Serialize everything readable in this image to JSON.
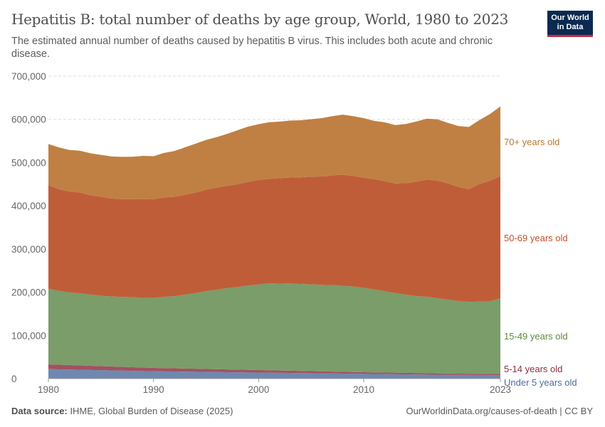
{
  "header": {
    "title": "Hepatitis B: total number of deaths by age group, World, 1980 to 2023",
    "subtitle": "The estimated annual number of deaths caused by hepatitis B virus. This includes both acute and chronic disease.",
    "logo": "Our World in Data"
  },
  "footer": {
    "source_label": "Data source:",
    "source": "IHME, Global Burden of Disease (2025)",
    "credit": "OurWorldinData.org/causes-of-death | CC BY"
  },
  "chart_data": {
    "type": "area",
    "stacked": true,
    "title": "Hepatitis B: total number of deaths by age group, World, 1980 to 2023",
    "ylim": [
      0,
      700000
    ],
    "y_ticks": [
      "0",
      "100,000",
      "200,000",
      "300,000",
      "400,000",
      "500,000",
      "600,000",
      "700,000"
    ],
    "x_ticks": [
      "1980",
      "1990",
      "2000",
      "2010",
      "2023"
    ],
    "grid": "horizontal dashed",
    "legend": "right, inline labels",
    "x": [
      1980,
      1981,
      1982,
      1983,
      1984,
      1985,
      1986,
      1987,
      1988,
      1989,
      1990,
      1991,
      1992,
      1993,
      1994,
      1995,
      1996,
      1997,
      1998,
      1999,
      2000,
      2001,
      2002,
      2003,
      2004,
      2005,
      2006,
      2007,
      2008,
      2009,
      2010,
      2011,
      2012,
      2013,
      2014,
      2015,
      2016,
      2017,
      2018,
      2019,
      2020,
      2021,
      2022,
      2023
    ],
    "series": [
      {
        "name": "Under 5 years old",
        "color": "#6f88b0",
        "label_color": "#4c6a9c",
        "values": [
          22000,
          21500,
          21000,
          20500,
          20000,
          19500,
          19000,
          18500,
          18000,
          17500,
          17000,
          16700,
          16400,
          16100,
          15800,
          15500,
          15200,
          14900,
          14600,
          14300,
          14000,
          13700,
          13400,
          13100,
          12800,
          12500,
          12200,
          11900,
          11600,
          11300,
          11000,
          10700,
          10400,
          10100,
          9800,
          9500,
          9200,
          9000,
          8800,
          8600,
          8400,
          8200,
          8000,
          8000
        ]
      },
      {
        "name": "5-14 years old",
        "color": "#a0525f",
        "label_color": "#8a2f3e",
        "values": [
          11000,
          10600,
          10200,
          9900,
          9600,
          9300,
          9000,
          8700,
          8400,
          8100,
          7800,
          7600,
          7400,
          7200,
          7000,
          6800,
          6600,
          6400,
          6200,
          6000,
          5800,
          5600,
          5400,
          5200,
          5000,
          4800,
          4600,
          4400,
          4200,
          4000,
          3900,
          3800,
          3700,
          3600,
          3500,
          3400,
          3300,
          3200,
          3100,
          3000,
          3000,
          3000,
          3000,
          3000
        ]
      },
      {
        "name": "15-49 years old",
        "color": "#7a9d6a",
        "label_color": "#5a8a3e",
        "values": [
          175000,
          171000,
          168000,
          167000,
          165000,
          163000,
          162000,
          162000,
          162000,
          161000,
          162000,
          165000,
          167000,
          171000,
          175000,
          180000,
          184000,
          188000,
          191000,
          195000,
          198000,
          201000,
          201000,
          202000,
          201000,
          201000,
          200000,
          200000,
          199000,
          198000,
          195000,
          192000,
          188000,
          184000,
          181000,
          178000,
          177000,
          174000,
          171000,
          168000,
          166000,
          167000,
          168000,
          175000
        ]
      },
      {
        "name": "50-69 years old",
        "color": "#c05d39",
        "label_color": "#c24f2a",
        "values": [
          240000,
          235000,
          234000,
          233000,
          230000,
          229000,
          227000,
          226000,
          227000,
          229000,
          228000,
          230000,
          230000,
          231000,
          233000,
          235000,
          236000,
          237000,
          238000,
          240000,
          242000,
          242000,
          244000,
          245000,
          247000,
          249000,
          251000,
          254000,
          257000,
          256000,
          255000,
          255000,
          255000,
          254000,
          258000,
          265000,
          271000,
          272000,
          269000,
          264000,
          261000,
          272000,
          279000,
          282000
        ]
      },
      {
        "name": "70+ years old",
        "color": "#c08043",
        "label_color": "#b9782c",
        "values": [
          95000,
          97000,
          96000,
          97000,
          97000,
          97000,
          97000,
          98000,
          98000,
          100000,
          100000,
          103000,
          106000,
          110000,
          113000,
          115000,
          117000,
          120000,
          125000,
          128000,
          129000,
          131000,
          131000,
          132000,
          132000,
          133000,
          135000,
          137000,
          139000,
          138000,
          138000,
          135000,
          136000,
          135000,
          137000,
          139000,
          141000,
          142000,
          140000,
          141000,
          144000,
          148000,
          154000,
          162000
        ]
      }
    ]
  }
}
